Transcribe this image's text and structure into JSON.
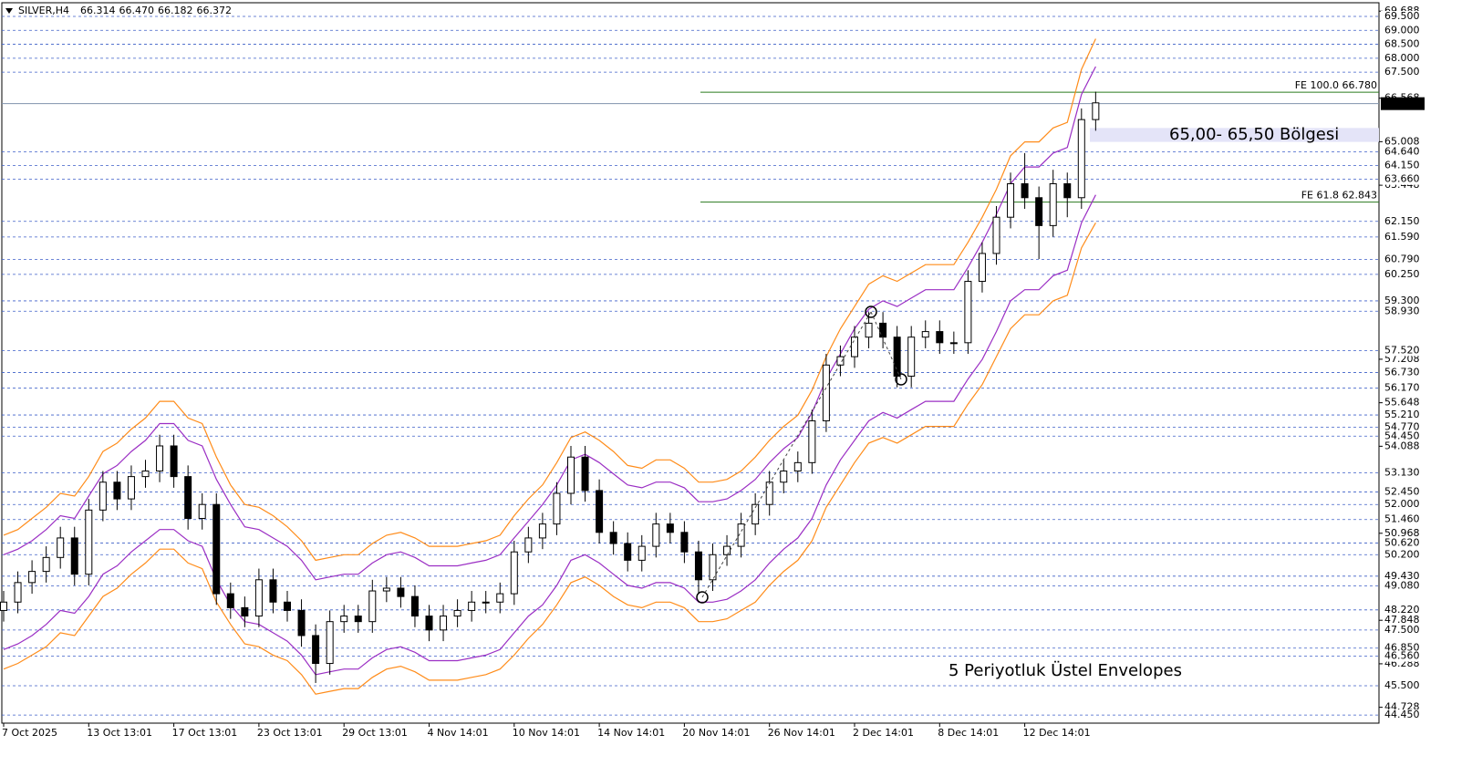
{
  "chart_data": {
    "type": "candlestick",
    "title": "SILVER,H4",
    "quote": [
      66.314,
      {
        "value": 66.47,
        "label": "66.470"
      },
      66.182,
      66.372
    ],
    "categories": [
      "7 Oct 2025",
      null,
      null,
      null,
      null,
      null,
      "13 Oct 13:01",
      null,
      null,
      null,
      null,
      null,
      "17 Oct 13:01",
      null,
      null,
      null,
      null,
      null,
      "23 Oct 13:01",
      null,
      null,
      null,
      null,
      null,
      "29 Oct 13:01",
      null,
      null,
      null,
      null,
      null,
      "4 Nov 14:01",
      null,
      null,
      null,
      null,
      null,
      "10 Nov 14:01",
      null,
      null,
      null,
      null,
      null,
      "14 Nov 14:01",
      null,
      null,
      null,
      null,
      null,
      "20 Nov 14:01",
      null,
      null,
      null,
      null,
      null,
      "26 Nov 14:01",
      null,
      null,
      null,
      null,
      null,
      "2 Dec 14:01",
      null,
      null,
      null,
      null,
      null,
      "8 Dec 14:01",
      null,
      null,
      null,
      null,
      null,
      "12 Dec 14:01",
      null,
      null,
      null,
      null,
      null
    ],
    "open": [
      48.2,
      48.5,
      49.2,
      49.6,
      50.1,
      50.8,
      49.5,
      51.8,
      52.8,
      52.2,
      53.0,
      53.2,
      54.1,
      53.0,
      51.5,
      52.0,
      48.8,
      48.3,
      48.0,
      49.3,
      48.5,
      48.2,
      47.3,
      46.3,
      47.8,
      48.0,
      47.8,
      48.9,
      49.0,
      48.7,
      48.0,
      47.5,
      48.0,
      48.2,
      48.5,
      48.5,
      48.8,
      50.3,
      50.8,
      51.3,
      52.4,
      53.7,
      52.5,
      51.0,
      50.6,
      50.0,
      50.5,
      51.3,
      51.0,
      50.3,
      49.3,
      50.2,
      50.5,
      51.3,
      52.0,
      52.8,
      53.2,
      53.5,
      55.0,
      57.0,
      57.3,
      58.0,
      58.5,
      58.0,
      56.6,
      58.0,
      58.2,
      57.8,
      57.8,
      60.0,
      61.0,
      62.3,
      63.5,
      63.0,
      62.0,
      63.5,
      63.0,
      65.8
    ],
    "high": [
      48.9,
      49.6,
      50.0,
      50.5,
      51.2,
      51.2,
      52.2,
      53.2,
      53.2,
      53.4,
      53.6,
      54.5,
      54.5,
      53.4,
      52.4,
      52.4,
      49.2,
      48.7,
      49.7,
      49.7,
      48.9,
      48.6,
      47.7,
      48.2,
      48.4,
      48.4,
      49.3,
      49.4,
      49.4,
      49.1,
      48.4,
      48.4,
      48.6,
      48.9,
      48.9,
      49.2,
      50.7,
      51.2,
      51.7,
      52.8,
      54.1,
      54.1,
      52.9,
      51.4,
      51.0,
      50.9,
      51.7,
      51.7,
      51.4,
      50.7,
      50.6,
      50.9,
      51.7,
      52.4,
      53.2,
      53.6,
      53.9,
      55.4,
      57.4,
      57.7,
      58.4,
      58.9,
      58.9,
      58.4,
      58.4,
      58.6,
      58.6,
      58.2,
      60.4,
      61.4,
      62.7,
      63.9,
      64.6,
      63.4,
      64.0,
      63.9,
      66.2,
      66.8
    ],
    "low": [
      47.8,
      48.1,
      48.8,
      49.2,
      49.7,
      49.1,
      49.1,
      51.4,
      51.8,
      51.8,
      52.6,
      52.8,
      52.6,
      51.1,
      51.1,
      48.4,
      47.9,
      47.6,
      47.6,
      48.1,
      47.8,
      46.9,
      45.6,
      45.9,
      47.4,
      47.4,
      47.4,
      48.5,
      48.3,
      47.6,
      47.1,
      47.1,
      47.6,
      47.8,
      48.1,
      48.1,
      48.4,
      49.9,
      50.4,
      50.9,
      52.0,
      52.1,
      50.6,
      50.2,
      49.6,
      49.6,
      50.1,
      50.6,
      49.9,
      48.8,
      48.9,
      49.8,
      50.1,
      50.9,
      51.6,
      52.4,
      52.8,
      53.1,
      54.6,
      56.6,
      56.9,
      57.6,
      57.6,
      56.2,
      56.2,
      57.6,
      57.4,
      57.4,
      57.4,
      59.6,
      60.6,
      61.9,
      62.6,
      60.8,
      61.6,
      62.3,
      62.6,
      65.4
    ],
    "close": [
      48.5,
      49.2,
      49.6,
      50.1,
      50.8,
      49.5,
      51.8,
      52.8,
      52.2,
      53.0,
      53.2,
      54.1,
      53.0,
      51.5,
      52.0,
      48.8,
      48.3,
      48.0,
      49.3,
      48.5,
      48.2,
      47.3,
      46.3,
      47.8,
      48.0,
      47.8,
      48.9,
      49.0,
      48.7,
      48.0,
      47.5,
      48.0,
      48.2,
      48.5,
      48.5,
      48.8,
      50.3,
      50.8,
      51.3,
      52.4,
      53.7,
      52.5,
      51.0,
      50.6,
      50.0,
      50.5,
      51.3,
      51.0,
      50.3,
      49.3,
      50.2,
      50.5,
      51.3,
      52.0,
      52.8,
      53.2,
      53.5,
      55.0,
      57.0,
      57.3,
      58.0,
      58.5,
      58.0,
      56.6,
      58.0,
      58.2,
      57.8,
      57.8,
      60.0,
      61.0,
      62.3,
      63.5,
      63.0,
      62.0,
      63.5,
      63.0,
      65.8,
      66.4
    ],
    "candle_colors": {
      "up": "#ffffff",
      "down": "#000000",
      "outline": "#000000"
    },
    "series": [
      {
        "color": "#ff8c1a",
        "values": [
          50.9,
          51.1,
          51.5,
          51.9,
          52.4,
          52.3,
          53.0,
          53.9,
          54.2,
          54.7,
          55.1,
          55.7,
          55.7,
          55.1,
          54.9,
          53.7,
          52.7,
          52.0,
          51.9,
          51.6,
          51.2,
          50.7,
          50.0,
          50.1,
          50.2,
          50.2,
          50.6,
          50.9,
          51.0,
          50.8,
          50.5,
          50.5,
          50.5,
          50.6,
          50.7,
          50.9,
          51.6,
          52.2,
          52.7,
          53.5,
          54.4,
          54.6,
          54.3,
          53.9,
          53.4,
          53.3,
          53.6,
          53.6,
          53.3,
          52.8,
          52.8,
          52.9,
          53.2,
          53.7,
          54.3,
          54.8,
          55.2,
          56.1,
          57.3,
          58.3,
          59.1,
          59.9,
          60.2,
          60.0,
          60.3,
          60.6,
          60.6,
          60.6,
          61.4,
          62.3,
          63.3,
          64.5,
          65.0,
          65.0,
          65.5,
          65.7,
          67.6,
          68.7
        ]
      },
      {
        "color": "#ff8c1a",
        "values": [
          46.1,
          46.3,
          46.6,
          46.9,
          47.4,
          47.3,
          48.0,
          48.7,
          49.0,
          49.5,
          49.9,
          50.4,
          50.4,
          49.9,
          49.7,
          48.5,
          47.7,
          47.0,
          46.9,
          46.6,
          46.4,
          45.9,
          45.2,
          45.3,
          45.4,
          45.4,
          45.8,
          46.1,
          46.2,
          46.0,
          45.7,
          45.7,
          45.7,
          45.8,
          45.9,
          46.1,
          46.6,
          47.2,
          47.7,
          48.4,
          49.2,
          49.4,
          49.1,
          48.7,
          48.4,
          48.3,
          48.5,
          48.5,
          48.3,
          47.8,
          47.8,
          47.9,
          48.2,
          48.5,
          49.1,
          49.6,
          50.0,
          50.7,
          51.9,
          52.7,
          53.5,
          54.2,
          54.4,
          54.2,
          54.5,
          54.8,
          54.8,
          54.8,
          55.6,
          56.3,
          57.3,
          58.3,
          58.8,
          58.8,
          59.3,
          59.5,
          61.2,
          62.1
        ]
      },
      {
        "color": "#9b2fc4",
        "values": [
          50.2,
          50.4,
          50.7,
          51.1,
          51.6,
          51.5,
          52.3,
          53.1,
          53.4,
          53.9,
          54.3,
          54.9,
          54.9,
          54.3,
          54.1,
          52.9,
          52.0,
          51.2,
          51.1,
          50.8,
          50.5,
          50.0,
          49.3,
          49.4,
          49.5,
          49.5,
          49.9,
          50.2,
          50.3,
          50.1,
          49.8,
          49.8,
          49.8,
          49.9,
          50.0,
          50.2,
          50.8,
          51.4,
          52.0,
          52.7,
          53.6,
          53.8,
          53.5,
          53.1,
          52.7,
          52.6,
          52.8,
          52.8,
          52.6,
          52.1,
          52.1,
          52.2,
          52.5,
          52.9,
          53.5,
          54.0,
          54.4,
          55.3,
          56.5,
          57.4,
          58.3,
          59.0,
          59.3,
          59.1,
          59.4,
          59.7,
          59.7,
          59.7,
          60.5,
          61.4,
          62.4,
          63.5,
          64.1,
          64.1,
          64.6,
          64.8,
          66.7,
          67.7
        ]
      },
      {
        "color": "#9b2fc4",
        "values": [
          46.8,
          47.0,
          47.3,
          47.7,
          48.2,
          48.1,
          48.7,
          49.5,
          49.8,
          50.3,
          50.7,
          51.1,
          51.1,
          50.7,
          50.5,
          49.3,
          48.4,
          47.8,
          47.7,
          47.4,
          47.1,
          46.6,
          45.9,
          46.0,
          46.1,
          46.1,
          46.5,
          46.8,
          46.9,
          46.7,
          46.4,
          46.4,
          46.4,
          46.5,
          46.6,
          46.8,
          47.4,
          48.0,
          48.4,
          49.1,
          50.0,
          50.2,
          49.9,
          49.5,
          49.1,
          49.0,
          49.2,
          49.2,
          49.0,
          48.5,
          48.5,
          48.6,
          48.9,
          49.3,
          49.9,
          50.4,
          50.8,
          51.5,
          52.7,
          53.6,
          54.3,
          55.0,
          55.3,
          55.1,
          55.4,
          55.7,
          55.7,
          55.7,
          56.5,
          57.2,
          58.2,
          59.3,
          59.7,
          59.7,
          60.2,
          60.4,
          62.1,
          63.1
        ]
      }
    ],
    "ylim": [
      44.16,
      69.99
    ],
    "yticks": [
      44.728,
      46.288,
      47.848,
      50.968,
      54.088,
      55.648,
      57.208,
      63.448,
      65.008,
      66.568,
      69.688
    ],
    "levels": [
      {
        "value": 69.5,
        "label": "69.500"
      },
      {
        "value": 69.0,
        "label": "69.000"
      },
      {
        "value": 68.5,
        "label": "68.500"
      },
      {
        "value": 68.0,
        "label": "68.000"
      },
      {
        "value": 67.5,
        "label": "67.500"
      },
      {
        "value": 64.64,
        "label": "64.640"
      },
      {
        "value": 64.15,
        "label": "64.150"
      },
      {
        "value": 63.66,
        "label": "63.660"
      },
      {
        "value": 62.15,
        "label": "62.150"
      },
      {
        "value": 61.59,
        "label": "61.590"
      },
      {
        "value": 60.79,
        "label": "60.790"
      },
      {
        "value": 60.25,
        "label": "60.250"
      },
      {
        "value": 59.3,
        "label": "59.300"
      },
      {
        "value": 58.93,
        "label": "58.930"
      },
      {
        "value": 57.52,
        "label": "57.520"
      },
      {
        "value": 56.73,
        "label": "56.730"
      },
      {
        "value": 56.17,
        "label": "56.170"
      },
      {
        "value": 55.21,
        "label": "55.210"
      },
      {
        "value": 54.77,
        "label": "54.770"
      },
      {
        "value": 54.45,
        "label": "54.450"
      },
      {
        "value": 53.13,
        "label": "53.130"
      },
      {
        "value": 52.45,
        "label": "52.450"
      },
      {
        "value": 52.0,
        "label": "52.000"
      },
      {
        "value": 51.46,
        "label": "51.460"
      },
      {
        "value": 50.62,
        "label": "50.620"
      },
      {
        "value": 50.2,
        "label": "50.200"
      },
      {
        "value": 49.43,
        "label": "49.430"
      },
      {
        "value": 49.08,
        "label": "49.080"
      },
      {
        "value": 48.22,
        "label": "48.220"
      },
      {
        "value": 47.5,
        "label": "47.500"
      },
      {
        "value": 46.85,
        "label": "46.850"
      },
      {
        "value": 46.56,
        "label": "46.560"
      },
      {
        "value": 45.5,
        "label": "45.500"
      },
      {
        "value": 44.45,
        "label": "44.450"
      }
    ],
    "level_color": "#3d5fc8",
    "current_price": 66.372,
    "fe_levels": [
      {
        "value": 66.78,
        "label": "FE 100.0 66.780"
      },
      {
        "value": 62.843,
        "label": "FE 61.8 62.843"
      }
    ],
    "fe_color": "#2a7a1e",
    "zone": {
      "range": [
        65.0,
        65.5
      ],
      "label": "65,00- 65,50 Bölgesi",
      "color": "#e4e4f8"
    },
    "annotation": {
      "text": "5 Periyotluk Üstel Envelopes",
      "color": "#3b6fd6"
    }
  }
}
